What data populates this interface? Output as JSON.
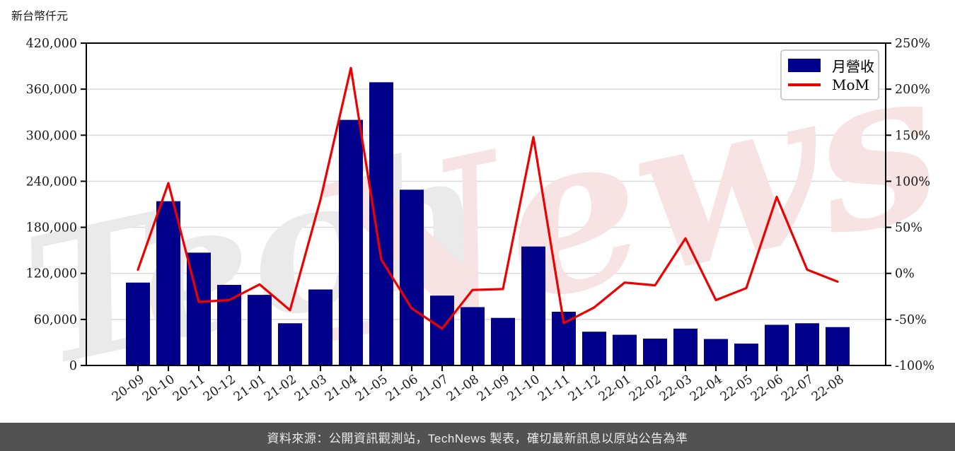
{
  "title": "新台幣仟元",
  "legend": {
    "bar_label": "月營收",
    "line_label": "MoM"
  },
  "source_bar": {
    "text": "資料來源：公開資訊觀測站，TechNews 製表，確切最新訊息以原站公告為準"
  },
  "watermark": {
    "part1": "Tech",
    "part2": "News"
  },
  "colors": {
    "bar": "#00008B",
    "line": "#EE0000",
    "grid": "#DCDCDC",
    "spine": "#000000",
    "tick_label": "#1a1a1a",
    "watermark_gray": "#EAEAEA",
    "watermark_pink": "#F7E3E3",
    "source_bg": "#525252",
    "source_text": "#ECECEC"
  },
  "chart_data": {
    "type": "bar",
    "title": "新台幣仟元",
    "categories": [
      "20-09",
      "20-10",
      "20-11",
      "20-12",
      "21-01",
      "21-02",
      "21-03",
      "21-04",
      "21-05",
      "21-06",
      "21-07",
      "21-08",
      "21-09",
      "21-10",
      "21-11",
      "21-12",
      "22-01",
      "22-02",
      "22-03",
      "22-04",
      "22-05",
      "22-06",
      "22-07",
      "22-08"
    ],
    "series": [
      {
        "name": "月營收",
        "type": "bar",
        "axis": "left",
        "values": [
          108000,
          214000,
          147000,
          105000,
          92000,
          55000,
          99000,
          320000,
          369000,
          229000,
          91000,
          76000,
          62000,
          155000,
          70000,
          44000,
          40000,
          35000,
          48000,
          34500,
          28500,
          53000,
          55000,
          50000
        ]
      },
      {
        "name": "MoM",
        "type": "line",
        "axis": "right",
        "values": [
          4,
          98,
          -31,
          -29,
          -12,
          -40,
          80,
          223,
          15,
          -38,
          -60,
          -18,
          -17,
          148,
          -54,
          -37,
          -10,
          -13,
          38,
          -29,
          -16,
          83,
          4,
          -9
        ]
      }
    ],
    "left_axis": {
      "min": 0,
      "max": 420000,
      "tick_step": 60000,
      "tick_labels": [
        "0",
        "60,000",
        "120,000",
        "180,000",
        "240,000",
        "300,000",
        "360,000",
        "420,000"
      ]
    },
    "right_axis": {
      "min": -100,
      "max": 250,
      "tick_step": 50,
      "unit": "%",
      "tick_labels": [
        "-100%",
        "-50%",
        "0%",
        "50%",
        "100%",
        "150%",
        "200%",
        "250%"
      ]
    },
    "grid": true,
    "legend_position": "top-right"
  }
}
